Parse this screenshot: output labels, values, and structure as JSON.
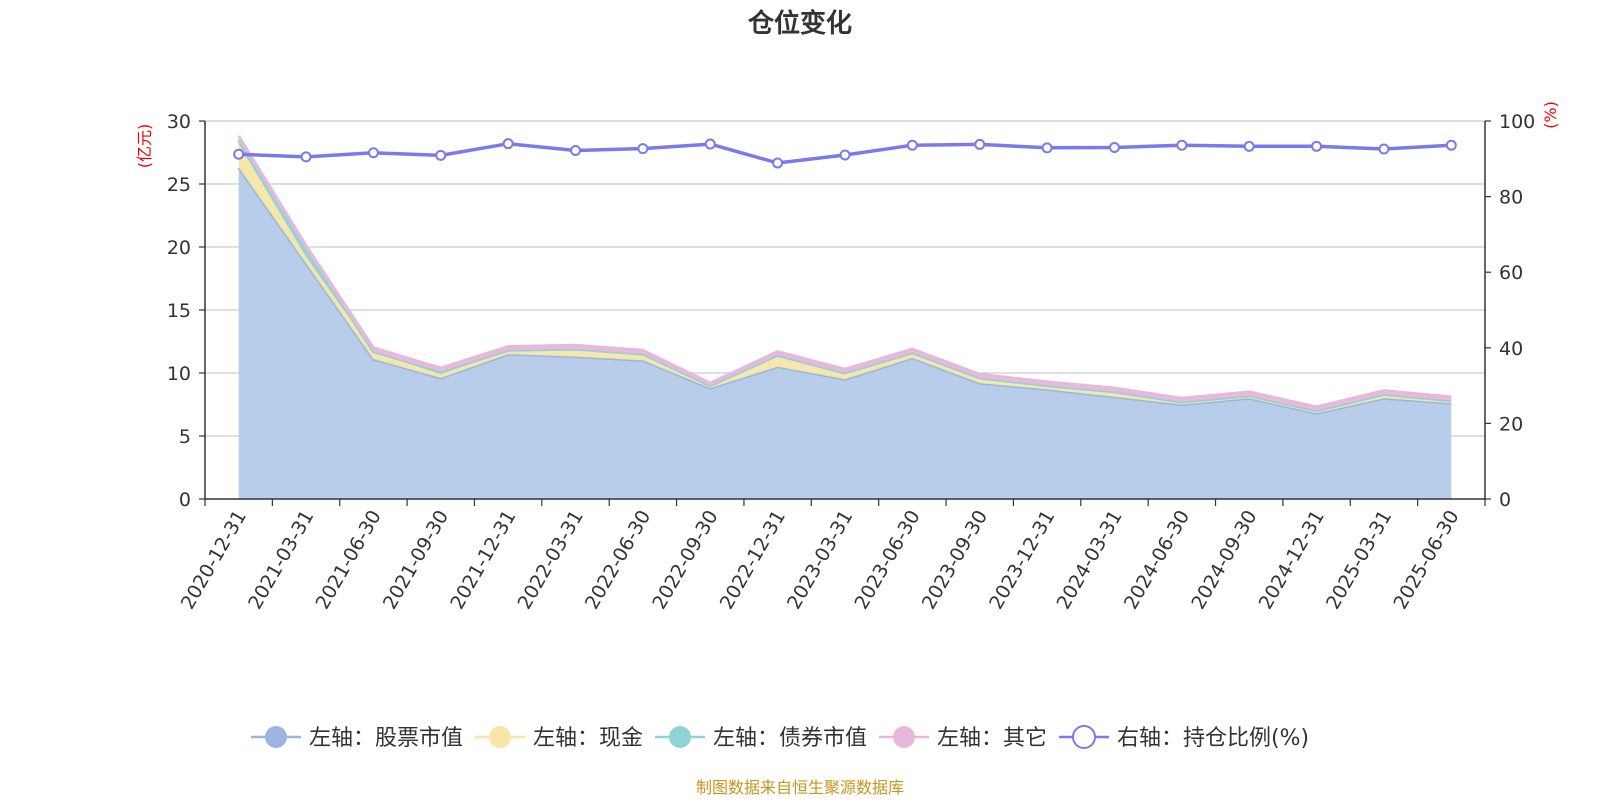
{
  "chart_data": {
    "type": "area",
    "title": "仓位变化",
    "left_axis_unit": "(亿元)",
    "right_axis_unit": "(%)",
    "ylim_left": [
      0,
      30
    ],
    "yticks_left": [
      0,
      5,
      10,
      15,
      20,
      25,
      30
    ],
    "ylim_right": [
      0,
      100
    ],
    "yticks_right": [
      0,
      20,
      40,
      60,
      80,
      100
    ],
    "grid": true,
    "stacked": true,
    "legend_position": "bottom",
    "x": [
      "2020-12-31",
      "2021-03-31",
      "2021-06-30",
      "2021-09-30",
      "2021-12-31",
      "2022-03-31",
      "2022-06-30",
      "2022-09-30",
      "2022-12-31",
      "2023-03-31",
      "2023-06-30",
      "2023-09-30",
      "2023-12-31",
      "2024-03-31",
      "2024-06-30",
      "2024-09-30",
      "2024-12-31",
      "2025-03-31",
      "2025-06-30"
    ],
    "series": [
      {
        "name": "左轴：股票市值",
        "axis": "left",
        "type": "area",
        "color": "#9ab6e0",
        "fill": "#b8cdea",
        "values": [
          26.3,
          18.7,
          11.1,
          9.6,
          11.5,
          11.3,
          11.0,
          8.8,
          10.5,
          9.5,
          11.2,
          9.2,
          8.7,
          8.1,
          7.5,
          8.0,
          6.8,
          8.0,
          7.6
        ]
      },
      {
        "name": "左轴：现金",
        "axis": "left",
        "type": "area",
        "color": "#f7e6a8",
        "fill": "#f7e6a8",
        "values": [
          1.9,
          0.5,
          0.6,
          0.3,
          0.3,
          0.6,
          0.5,
          0.2,
          0.9,
          0.4,
          0.4,
          0.4,
          0.3,
          0.4,
          0.2,
          0.2,
          0.2,
          0.3,
          0.2
        ]
      },
      {
        "name": "左轴：债券市值",
        "axis": "left",
        "type": "area",
        "color": "#8ed3d6",
        "fill": "#8ed3d6",
        "values": [
          0.3,
          0.6,
          0.0,
          0.2,
          0.0,
          0.0,
          0.0,
          0.0,
          0.0,
          0.1,
          0.0,
          0.0,
          0.0,
          0.0,
          0.0,
          0.0,
          0.0,
          0.0,
          0.0
        ]
      },
      {
        "name": "左轴：其它",
        "axis": "left",
        "type": "area",
        "color": "#e8b8dc",
        "fill": "#e8b8dc",
        "values": [
          0.3,
          0.3,
          0.3,
          0.3,
          0.3,
          0.3,
          0.3,
          0.2,
          0.3,
          0.3,
          0.3,
          0.3,
          0.3,
          0.3,
          0.3,
          0.3,
          0.3,
          0.3,
          0.3
        ]
      },
      {
        "name": "右轴：持仓比例(%)",
        "axis": "right",
        "type": "line",
        "color": "#7a7aee",
        "values": [
          91.2,
          90.5,
          91.6,
          90.9,
          94.0,
          92.2,
          92.7,
          93.9,
          88.9,
          91.0,
          93.6,
          93.8,
          92.9,
          93.0,
          93.6,
          93.3,
          93.3,
          92.6,
          93.6
        ]
      }
    ],
    "source": "制图数据来自恒生聚源数据库"
  }
}
